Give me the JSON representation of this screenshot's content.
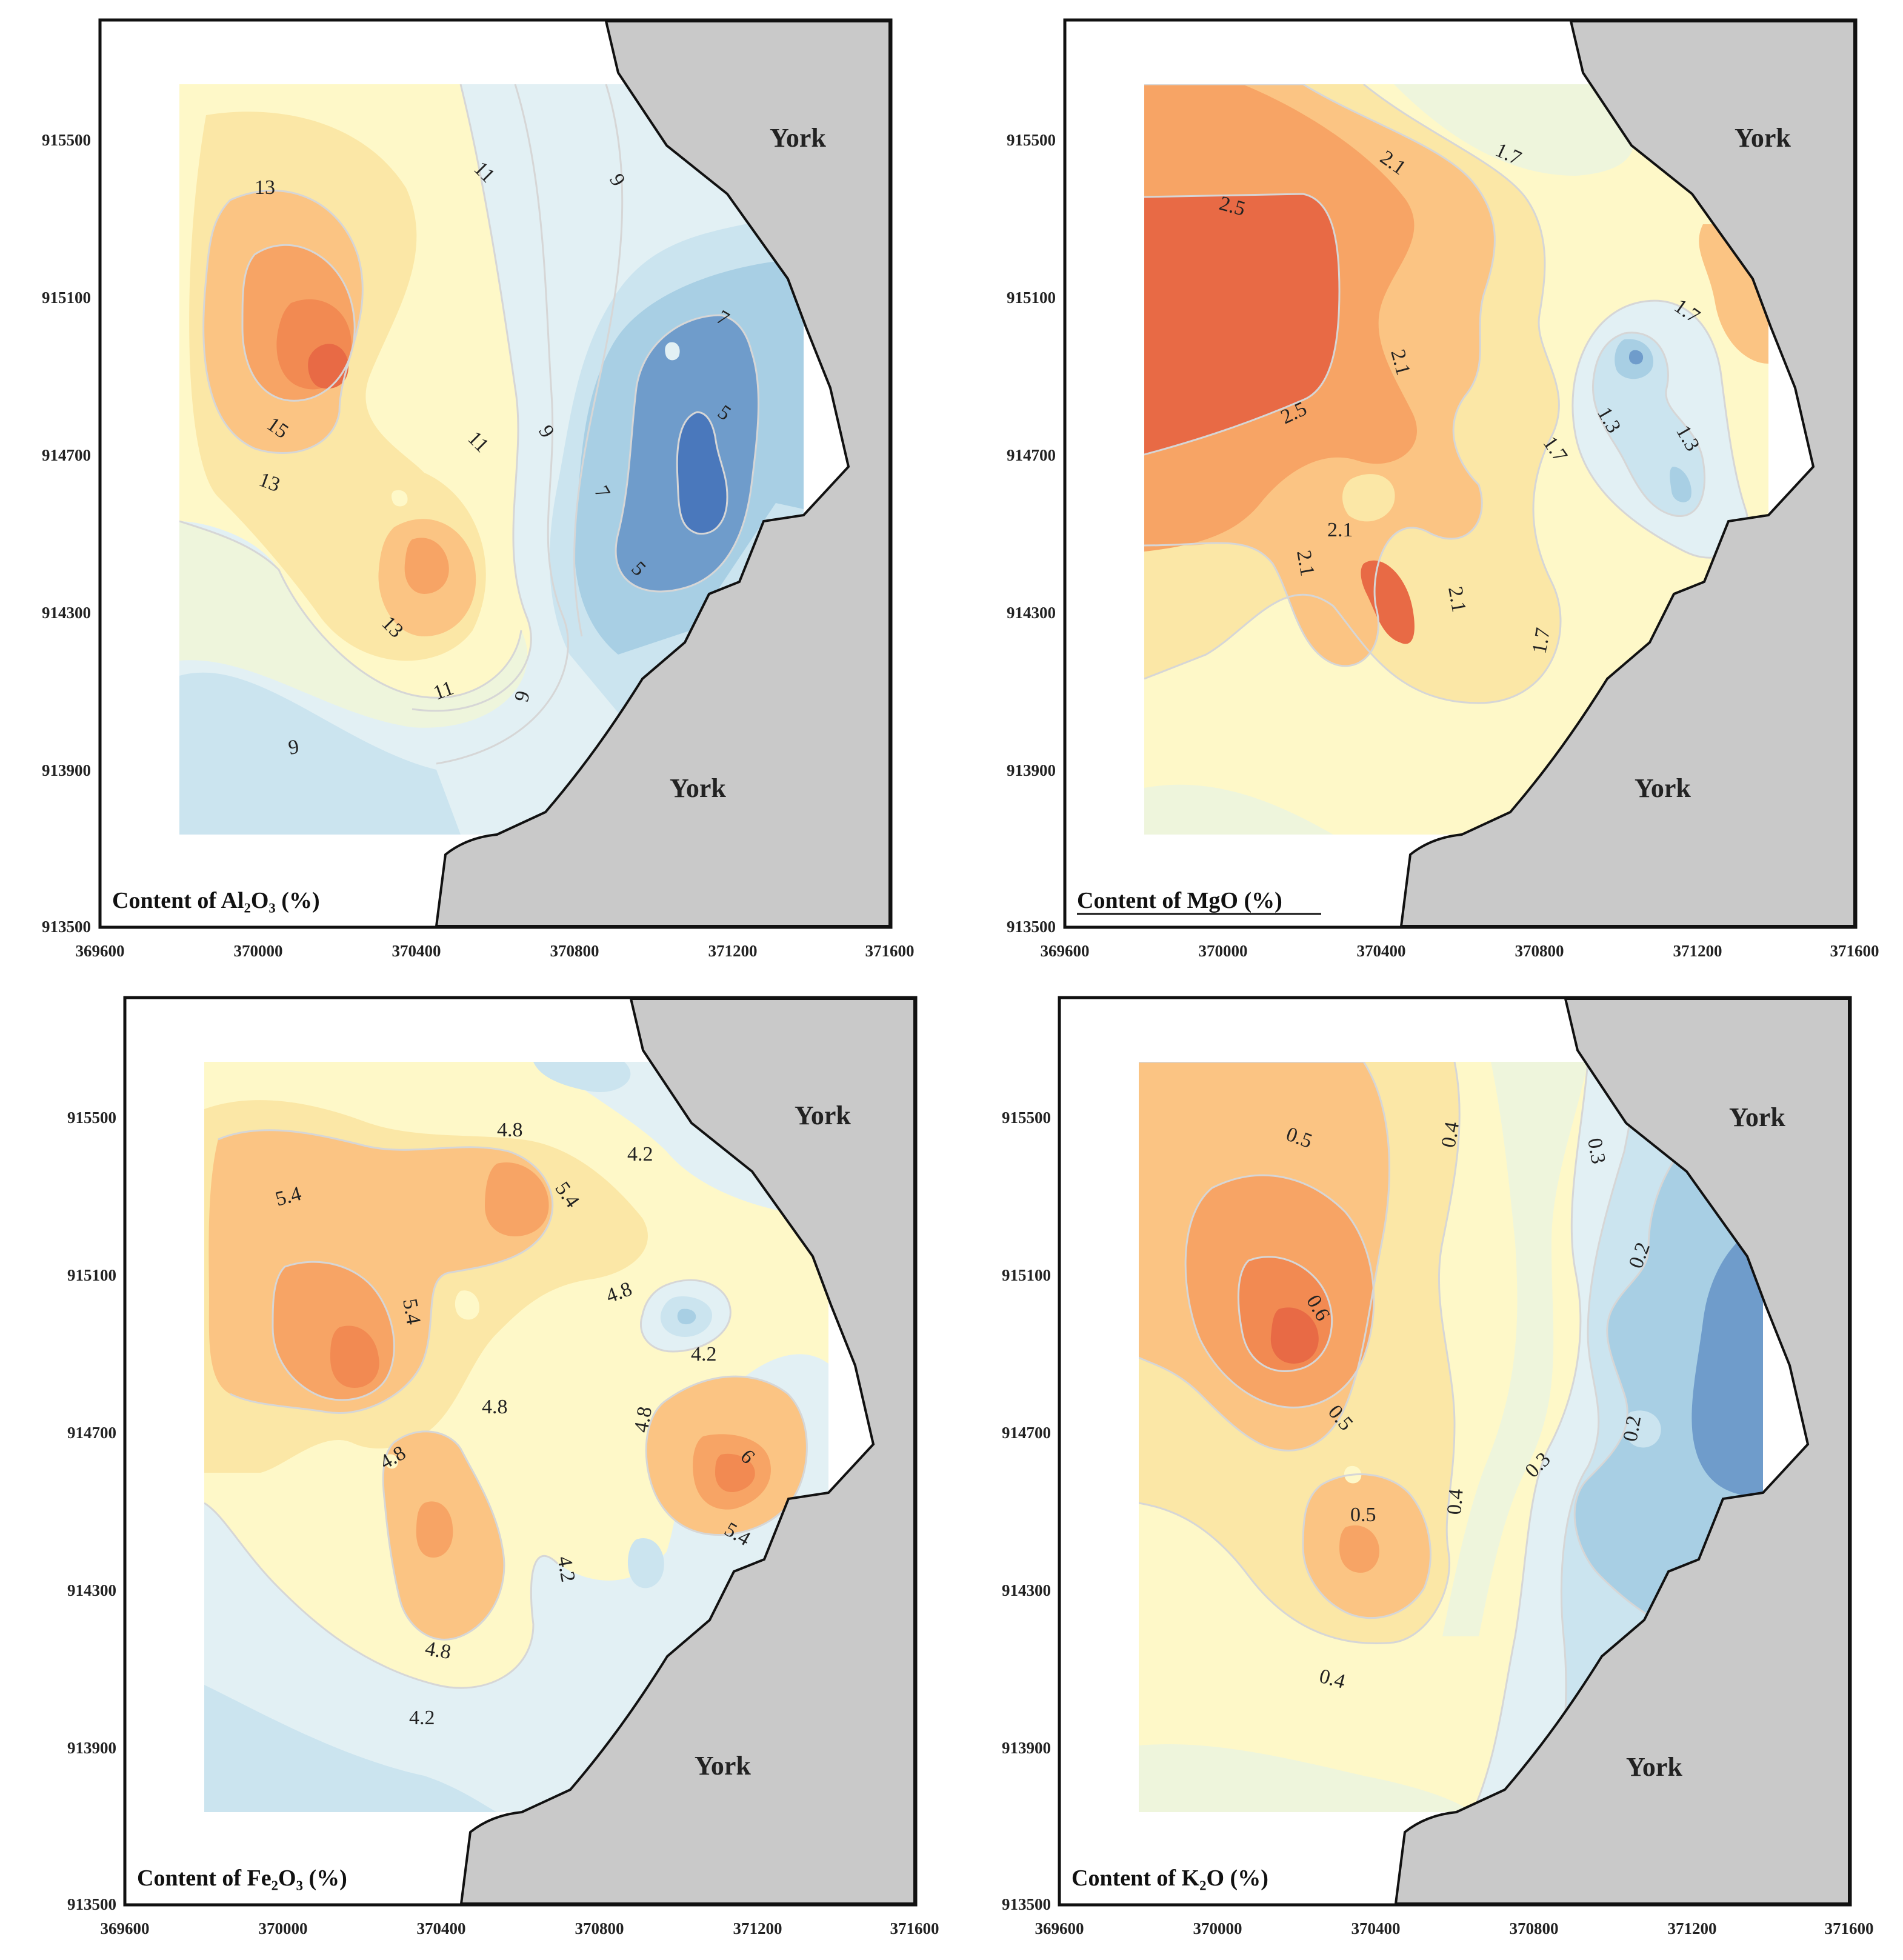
{
  "figure": {
    "xticks": [
      "369600",
      "370000",
      "370400",
      "370800",
      "371200",
      "371600"
    ],
    "yticks": [
      "913500",
      "913900",
      "914300",
      "914700",
      "915100",
      "915500"
    ],
    "colors": {
      "very_low": "#4a78bc",
      "low": "#6f9ccb",
      "mid_low": "#a8cfe4",
      "light_blue": "#cbe4ef",
      "pale_blue": "#e2f0f4",
      "pale_green": "#eef5dc",
      "pale_yellow": "#fef8c8",
      "light_yellow": "#fbe7a6",
      "light_orange": "#fbc483",
      "orange": "#f7a465",
      "dark_orange": "#f28a52",
      "red_orange": "#e86a45",
      "land": "#c9c9c9"
    }
  },
  "panels": [
    {
      "id": "al2o3",
      "title": "Content of Al₂O₃ (%)",
      "place_labels": [
        "York",
        "York"
      ],
      "contour_labels": [
        "13",
        "11",
        "9",
        "7",
        "15",
        "11",
        "9",
        "5",
        "13",
        "7",
        "13",
        "5",
        "11",
        "9",
        "9"
      ]
    },
    {
      "id": "mgo",
      "title": "Content of MgO (%)",
      "place_labels": [
        "York",
        "York"
      ],
      "contour_labels": [
        "2.5",
        "2.1",
        "1.7",
        "1.7",
        "2.1",
        "2.5",
        "1.3",
        "1.3",
        "1.7",
        "2.1",
        "2.1",
        "2.1",
        "1.7"
      ]
    },
    {
      "id": "fe2o3",
      "title": "Content of Fe₂O₃ (%)",
      "place_labels": [
        "York",
        "York"
      ],
      "contour_labels": [
        "4.8",
        "4.2",
        "5.4",
        "5.4",
        "5.4",
        "4.8",
        "4.2",
        "4.8",
        "4.8",
        "6",
        "4.8",
        "5.4",
        "4.2",
        "4.8",
        "4.2"
      ]
    },
    {
      "id": "k2o",
      "title": "Content of K₂O (%)",
      "place_labels": [
        "York",
        "York"
      ],
      "contour_labels": [
        "0.5",
        "0.4",
        "0.3",
        "0.2",
        "0.6",
        "0.5",
        "0.2",
        "0.3",
        "0.4",
        "0.5",
        "0.4"
      ]
    }
  ]
}
